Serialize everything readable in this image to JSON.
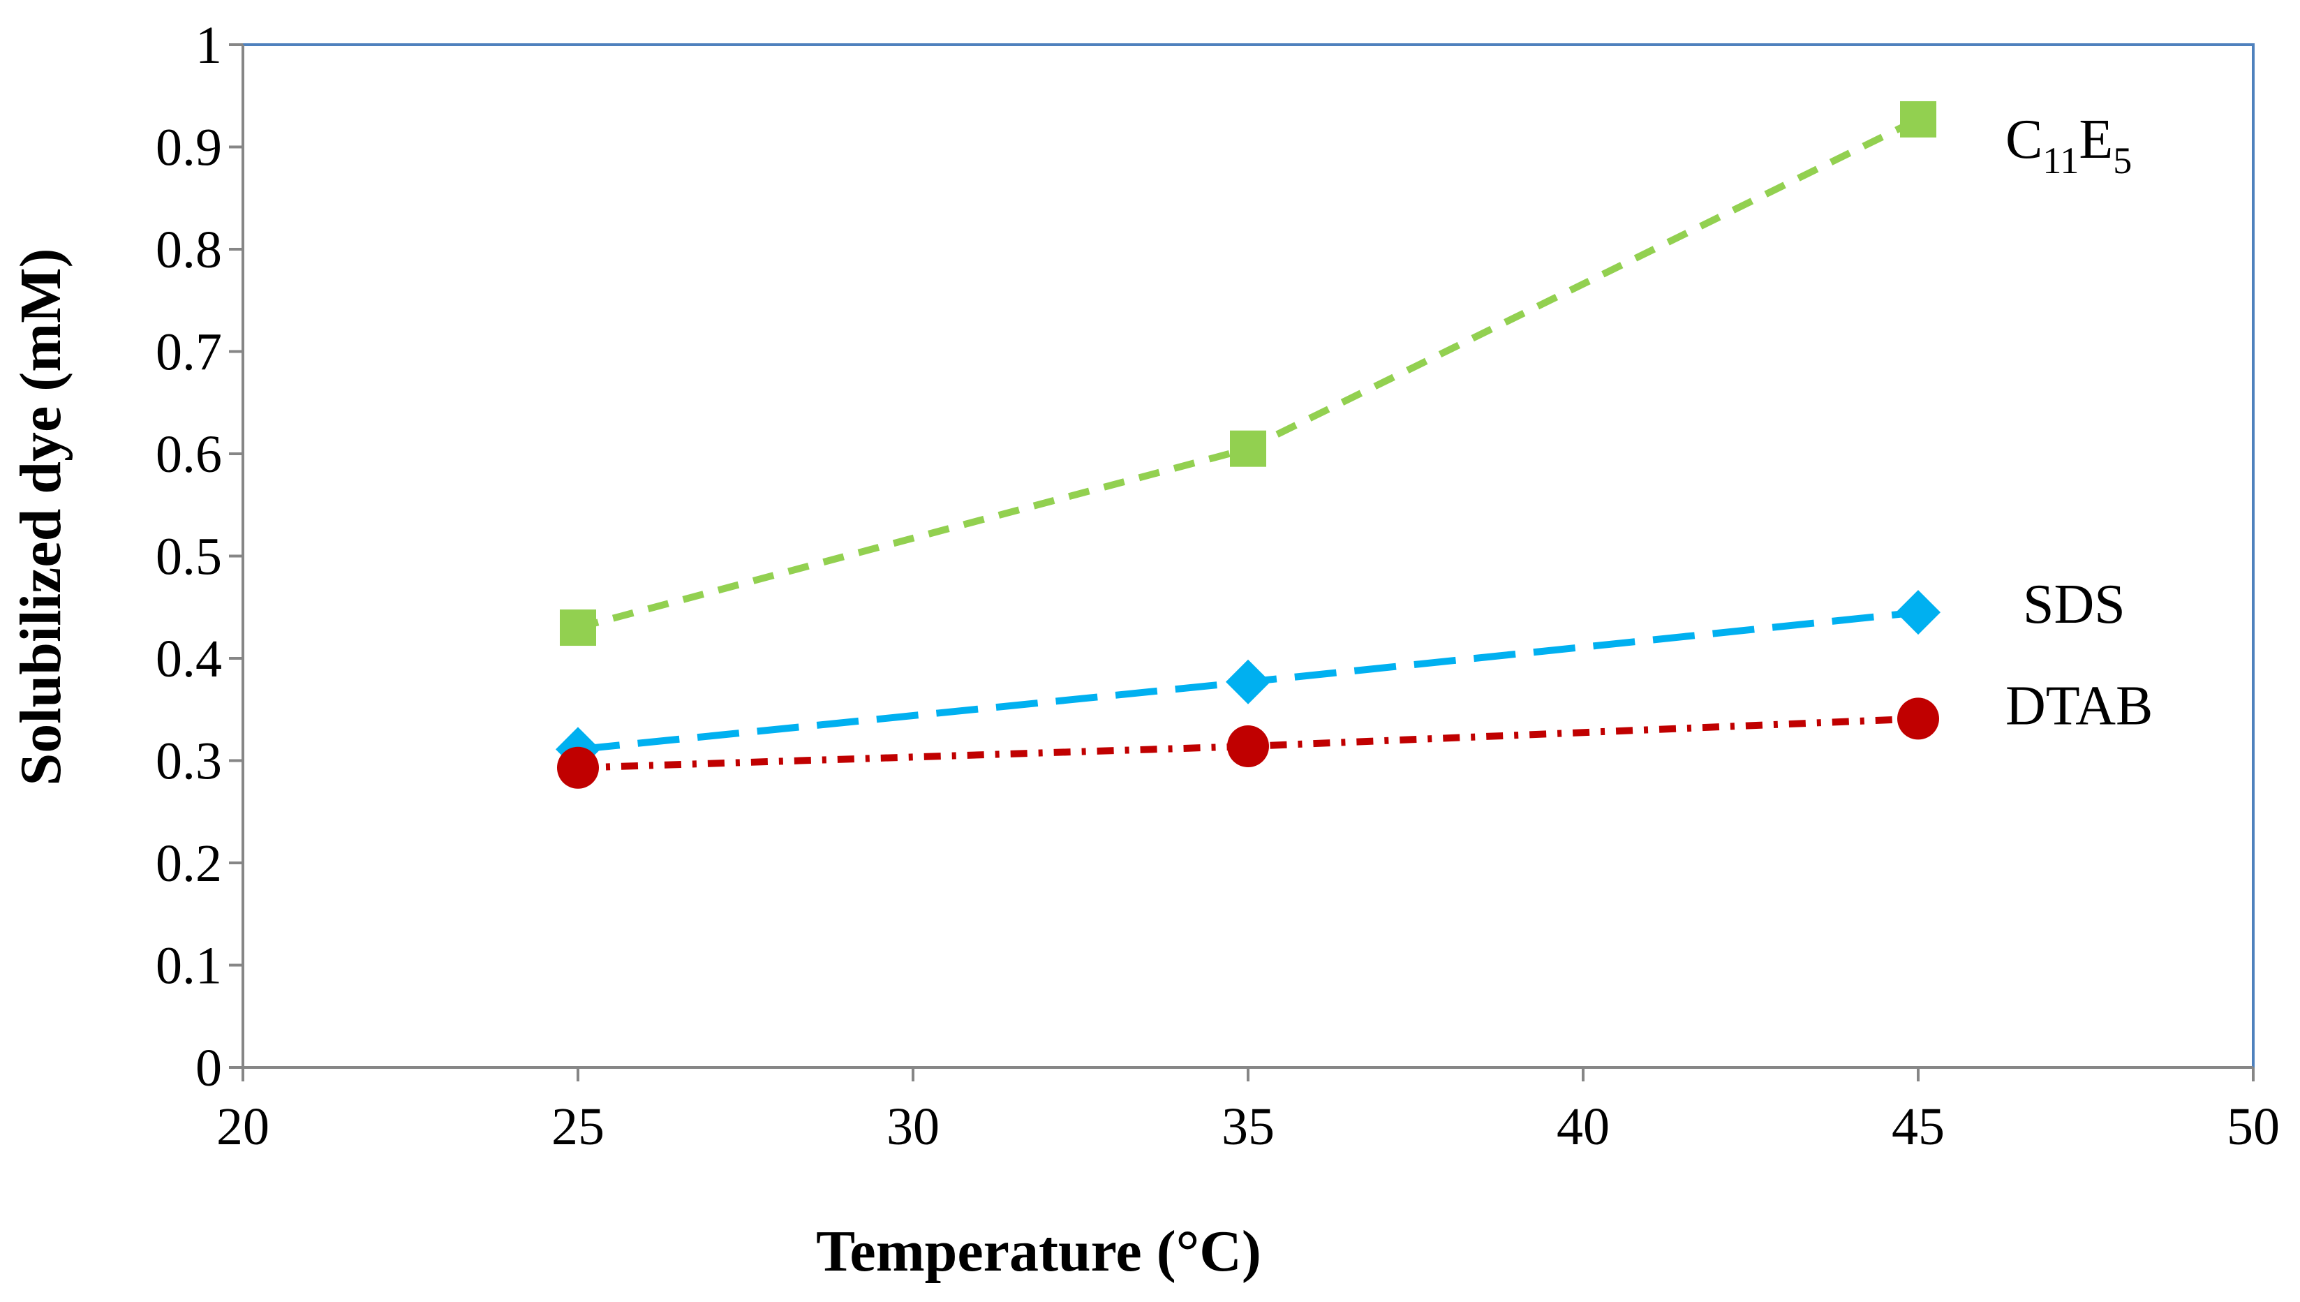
{
  "chart_data": {
    "type": "line",
    "title": "",
    "xlabel": "Temperature (°C)",
    "ylabel": "Solubilized dye (mM)",
    "xlim": [
      20,
      50
    ],
    "ylim": [
      0,
      1
    ],
    "x_ticks": [
      20,
      25,
      30,
      35,
      40,
      45,
      50
    ],
    "x_tick_labels": [
      "20",
      "25",
      "30",
      "35",
      "40",
      "45",
      "50"
    ],
    "y_ticks": [
      0,
      0.1,
      0.2,
      0.3,
      0.4,
      0.5,
      0.6,
      0.7,
      0.8,
      0.9,
      1
    ],
    "y_tick_labels": [
      "0",
      "0.1",
      "0.2",
      "0.3",
      "0.4",
      "0.5",
      "0.6",
      "0.7",
      "0.8",
      "0.9",
      "1"
    ],
    "grid": false,
    "legend": "inline labels at right end of each series",
    "series": [
      {
        "name": "C11E5",
        "label_main": "C",
        "label_sub1": "11",
        "label_mid": "E",
        "label_sub2": "5",
        "x": [
          25,
          35,
          45
        ],
        "values": [
          0.43,
          0.605,
          0.927
        ],
        "color": "#92D050",
        "marker": "square",
        "line_style": "dashed"
      },
      {
        "name": "SDS",
        "label": "SDS",
        "x": [
          25,
          35,
          45
        ],
        "values": [
          0.311,
          0.377,
          0.445
        ],
        "color": "#00B0F0",
        "marker": "diamond",
        "line_style": "long-dash"
      },
      {
        "name": "DTAB",
        "label": "DTAB",
        "x": [
          25,
          35,
          45
        ],
        "values": [
          0.293,
          0.314,
          0.341
        ],
        "color": "#C00000",
        "marker": "circle",
        "line_style": "dash-dot"
      }
    ],
    "frame_color": "#4F81BD"
  }
}
